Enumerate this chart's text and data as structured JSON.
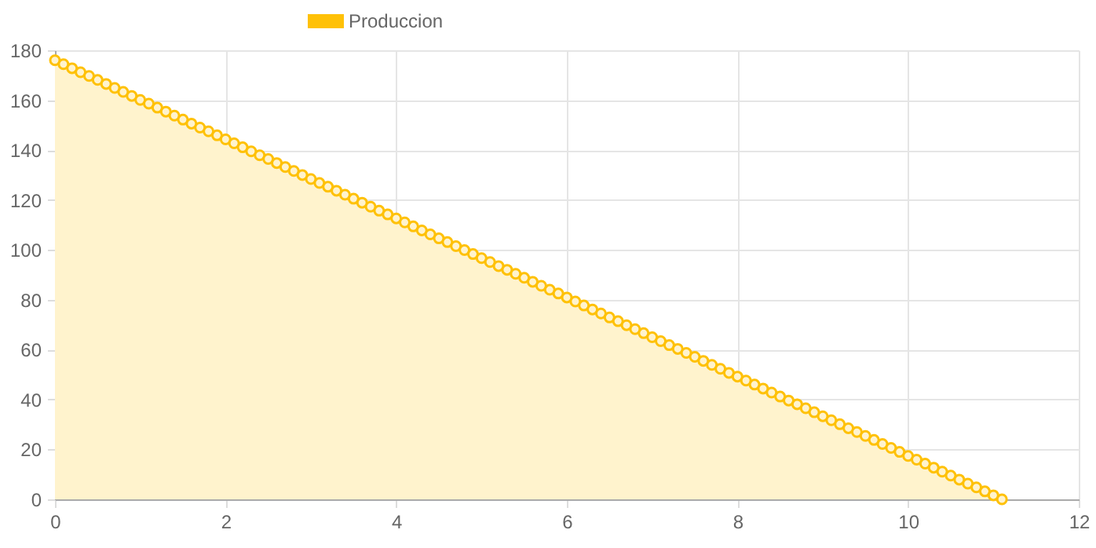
{
  "chart_data": {
    "type": "area",
    "x": [
      0,
      0.1,
      0.2,
      0.3,
      0.4,
      0.5,
      0.6,
      0.7,
      0.8,
      0.9,
      1,
      1.1,
      1.2,
      1.3,
      1.4,
      1.5,
      1.6,
      1.7,
      1.8,
      1.9,
      2,
      2.1,
      2.2,
      2.3,
      2.4,
      2.5,
      2.6,
      2.7,
      2.8,
      2.9,
      3,
      3.1,
      3.2,
      3.3,
      3.4,
      3.5,
      3.6,
      3.7,
      3.8,
      3.9,
      4,
      4.1,
      4.2,
      4.3,
      4.4,
      4.5,
      4.6,
      4.7,
      4.8,
      4.9,
      5,
      5.1,
      5.2,
      5.3,
      5.4,
      5.5,
      5.6,
      5.7,
      5.8,
      5.9,
      6,
      6.1,
      6.2,
      6.3,
      6.4,
      6.5,
      6.6,
      6.7,
      6.8,
      6.9,
      7,
      7.1,
      7.2,
      7.3,
      7.4,
      7.5,
      7.6,
      7.7,
      7.8,
      7.9,
      8,
      8.1,
      8.2,
      8.3,
      8.4,
      8.5,
      8.6,
      8.7,
      8.8,
      8.9,
      9,
      9.1,
      9.2,
      9.3,
      9.4,
      9.5,
      9.6,
      9.7,
      9.8,
      9.9,
      10,
      10.1,
      10.2,
      10.3,
      10.4,
      10.5,
      10.6,
      10.7,
      10.8,
      10.9,
      11,
      11.1
    ],
    "series": [
      {
        "name": "Produccion",
        "color": "#ffc107",
        "values": [
          176,
          174.4,
          172.8,
          171.2,
          169.7,
          168.1,
          166.5,
          164.9,
          163.3,
          161.7,
          160.1,
          158.6,
          157,
          155.4,
          153.8,
          152.2,
          150.6,
          149,
          147.5,
          145.9,
          144.3,
          142.7,
          141.1,
          139.5,
          137.9,
          136.4,
          134.8,
          133.2,
          131.6,
          130,
          128.4,
          126.8,
          125.3,
          123.7,
          122.1,
          120.5,
          118.9,
          117.3,
          115.7,
          114.2,
          112.6,
          111,
          109.4,
          107.8,
          106.2,
          104.6,
          103.1,
          101.5,
          99.9,
          98.3,
          96.7,
          95.1,
          93.5,
          92,
          90.4,
          88.8,
          87.2,
          85.6,
          84,
          82.5,
          80.9,
          79.3,
          77.7,
          76.1,
          74.5,
          72.9,
          71.4,
          69.8,
          68.2,
          66.6,
          65,
          63.4,
          61.8,
          60.3,
          58.7,
          57.1,
          55.5,
          53.9,
          52.3,
          50.7,
          49.2,
          47.6,
          46,
          44.4,
          42.8,
          41.2,
          39.6,
          38.1,
          36.5,
          34.9,
          33.3,
          31.7,
          30.1,
          28.5,
          27,
          25.4,
          23.8,
          22.2,
          20.6,
          19,
          17.4,
          15.9,
          14.3,
          12.7,
          11.1,
          9.5,
          7.9,
          6.3,
          4.8,
          3.2,
          1.6,
          0
        ]
      }
    ],
    "xlim": [
      0,
      12
    ],
    "xticks": [
      0,
      2,
      4,
      6,
      8,
      10,
      12
    ],
    "ylim": [
      0,
      180
    ],
    "yticks": [
      0,
      20,
      40,
      60,
      80,
      100,
      120,
      140,
      160,
      180
    ],
    "grid": true,
    "legend": "top",
    "marker": "circle"
  }
}
